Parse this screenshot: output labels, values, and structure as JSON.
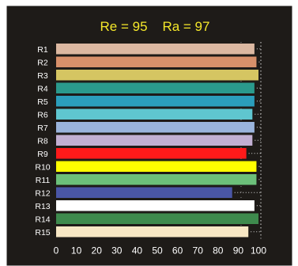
{
  "chart_data": {
    "type": "bar",
    "orientation": "horizontal",
    "title": "Re = 95    Ra = 97",
    "categories": [
      "R1",
      "R2",
      "R3",
      "R4",
      "R5",
      "R6",
      "R7",
      "R8",
      "R9",
      "R10",
      "R11",
      "R12",
      "R13",
      "R14",
      "R15"
    ],
    "values": [
      98,
      99,
      100,
      98,
      98,
      97,
      98,
      97,
      94,
      99,
      99,
      87,
      98,
      100,
      95
    ],
    "bar_colors": [
      "#dcb8a1",
      "#d8906a",
      "#d5c562",
      "#2a9a8c",
      "#2b9ebb",
      "#5fc6cf",
      "#9ab4dc",
      "#c2afd2",
      "#ff1a1a",
      "#ffff00",
      "#6cc07a",
      "#4a56a6",
      "#ffffff",
      "#3e8a4d",
      "#f7e7c4"
    ],
    "xlim": [
      0,
      100
    ],
    "xticks": [
      "0",
      "10",
      "20",
      "30",
      "40",
      "50",
      "60",
      "70",
      "80",
      "90",
      "100"
    ],
    "colors": {
      "background": "#1e1b18",
      "frame": "#ffffff",
      "title": "#f5e82a",
      "text": "#ffffff",
      "grid": "#d8d8d8"
    }
  }
}
